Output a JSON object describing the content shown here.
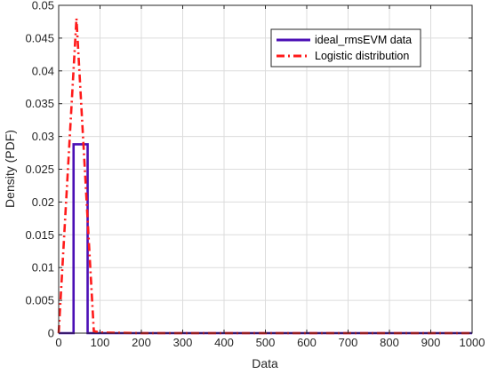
{
  "chart_data": {
    "type": "line",
    "xlabel": "Data",
    "ylabel": "Density (PDF)",
    "xlim": [
      0,
      1000
    ],
    "ylim": [
      0,
      0.05
    ],
    "xticks": [
      0,
      100,
      200,
      300,
      400,
      500,
      600,
      700,
      800,
      900,
      1000
    ],
    "yticks": [
      0,
      0.005,
      0.01,
      0.015,
      0.02,
      0.025,
      0.03,
      0.035,
      0.04,
      0.045,
      0.05
    ],
    "xtick_labels": [
      "0",
      "100",
      "200",
      "300",
      "400",
      "500",
      "600",
      "700",
      "800",
      "900",
      "1000"
    ],
    "ytick_labels": [
      "0",
      "0.005",
      "0.01",
      "0.015",
      "0.02",
      "0.025",
      "0.03",
      "0.035",
      "0.04",
      "0.045",
      "0.05"
    ],
    "grid": true,
    "legend_position": "top-right",
    "series": [
      {
        "name": "ideal_rmsEVM data",
        "color": "#4b0fb5",
        "style": "solid",
        "x": [
          0,
          36,
          36,
          70,
          70,
          1000
        ],
        "y": [
          0,
          0,
          0.0288,
          0.0288,
          0,
          0
        ]
      },
      {
        "name": "Logistic distribution",
        "color": "#ff1a1a",
        "style": "dashdot",
        "x": [
          0,
          43,
          85,
          100,
          200,
          400,
          600,
          800,
          1000
        ],
        "y": [
          0,
          0.048,
          0.0003,
          0.0001,
          0,
          0,
          0,
          0,
          0
        ]
      }
    ]
  }
}
